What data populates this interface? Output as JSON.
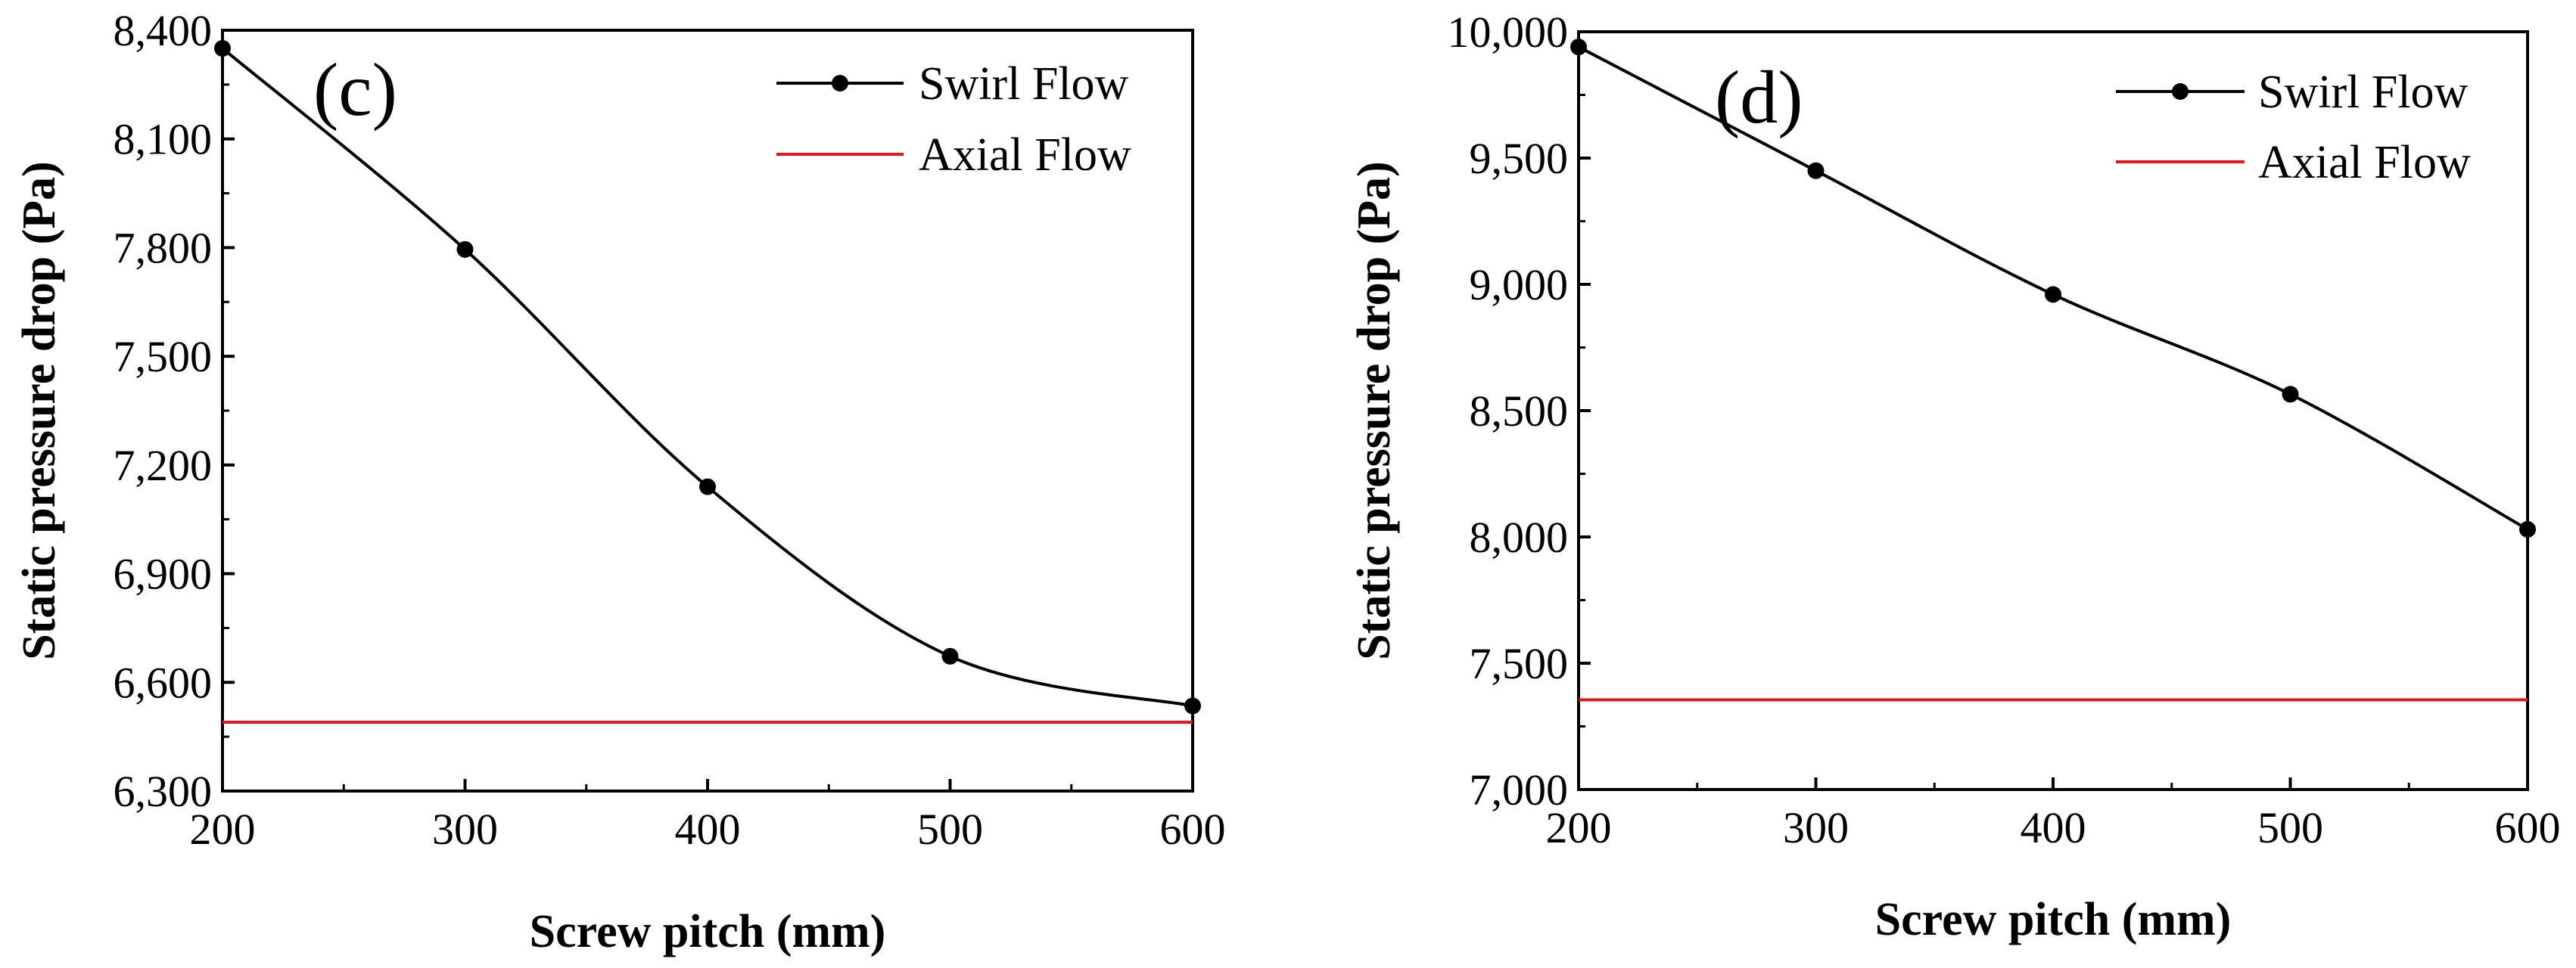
{
  "chart_data": [
    {
      "type": "line",
      "panel_label": "(c)",
      "xlabel": "Screw pitch (mm)",
      "ylabel": "Static pressure drop (Pa)",
      "xlim": [
        200,
        600
      ],
      "ylim": [
        6300,
        8400
      ],
      "x_ticks": [
        200,
        300,
        400,
        500,
        600
      ],
      "x_tick_labels": [
        "200",
        "300",
        "400",
        "500",
        "600"
      ],
      "y_ticks": [
        6300,
        6600,
        6900,
        7200,
        7500,
        7800,
        8100,
        8400
      ],
      "y_tick_labels": [
        "6,300",
        "6,600",
        "6,900",
        "7,200",
        "7,500",
        "7,800",
        "8,100",
        "8,400"
      ],
      "legend_position": "top-right",
      "series": [
        {
          "name": "Swirl Flow",
          "color": "#000000",
          "marker": "circle",
          "smooth": true,
          "x": [
            200,
            300,
            400,
            500,
            600
          ],
          "y": [
            8350,
            7795,
            7140,
            6672,
            6535
          ]
        },
        {
          "name": "Axial Flow",
          "color": "#e8141c",
          "marker": "none",
          "smooth": false,
          "x": [
            200,
            600
          ],
          "y": [
            6490,
            6490
          ]
        }
      ]
    },
    {
      "type": "line",
      "panel_label": "(d)",
      "xlabel": "Screw pitch (mm)",
      "ylabel": "Static pressure drop (Pa)",
      "xlim": [
        200,
        600
      ],
      "ylim": [
        7000,
        10000
      ],
      "x_ticks": [
        200,
        300,
        400,
        500,
        600
      ],
      "x_tick_labels": [
        "200",
        "300",
        "400",
        "500",
        "600"
      ],
      "y_ticks": [
        7000,
        7500,
        8000,
        8500,
        9000,
        9500,
        10000
      ],
      "y_tick_labels": [
        "7,000",
        "7,500",
        "8,000",
        "8,500",
        "9,000",
        "9,500",
        "10,000"
      ],
      "legend_position": "top-right",
      "series": [
        {
          "name": "Swirl Flow",
          "color": "#000000",
          "marker": "circle",
          "smooth": true,
          "x": [
            200,
            300,
            400,
            500,
            600
          ],
          "y": [
            9940,
            9450,
            8960,
            8565,
            8030
          ]
        },
        {
          "name": "Axial Flow",
          "color": "#e8141c",
          "marker": "none",
          "smooth": false,
          "x": [
            200,
            600
          ],
          "y": [
            7355,
            7355
          ]
        }
      ]
    }
  ]
}
